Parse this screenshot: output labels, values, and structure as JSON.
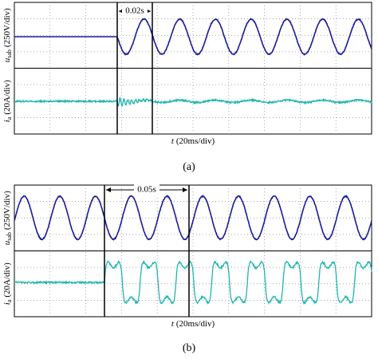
{
  "panels": [
    {
      "caption": "(a)",
      "interval": "0.02s",
      "x_label": {
        "symbol": "t",
        "unit": "(20ms/div)"
      },
      "upper_label": {
        "symbol": "u",
        "subscript": "sab",
        "unit": "(250V/div)"
      },
      "lower_label": {
        "symbol": "i",
        "subscript": "a",
        "unit": "(20A/div)"
      }
    },
    {
      "caption": "(b)",
      "interval": "0.05s",
      "x_label": {
        "symbol": "t",
        "unit": "(20ms/div)"
      },
      "upper_label": {
        "symbol": "u",
        "subscript": "sab",
        "unit": "(250V/div)"
      },
      "lower_label": {
        "symbol": "i",
        "subscript": "a",
        "unit": "(20A/div)"
      }
    }
  ]
}
